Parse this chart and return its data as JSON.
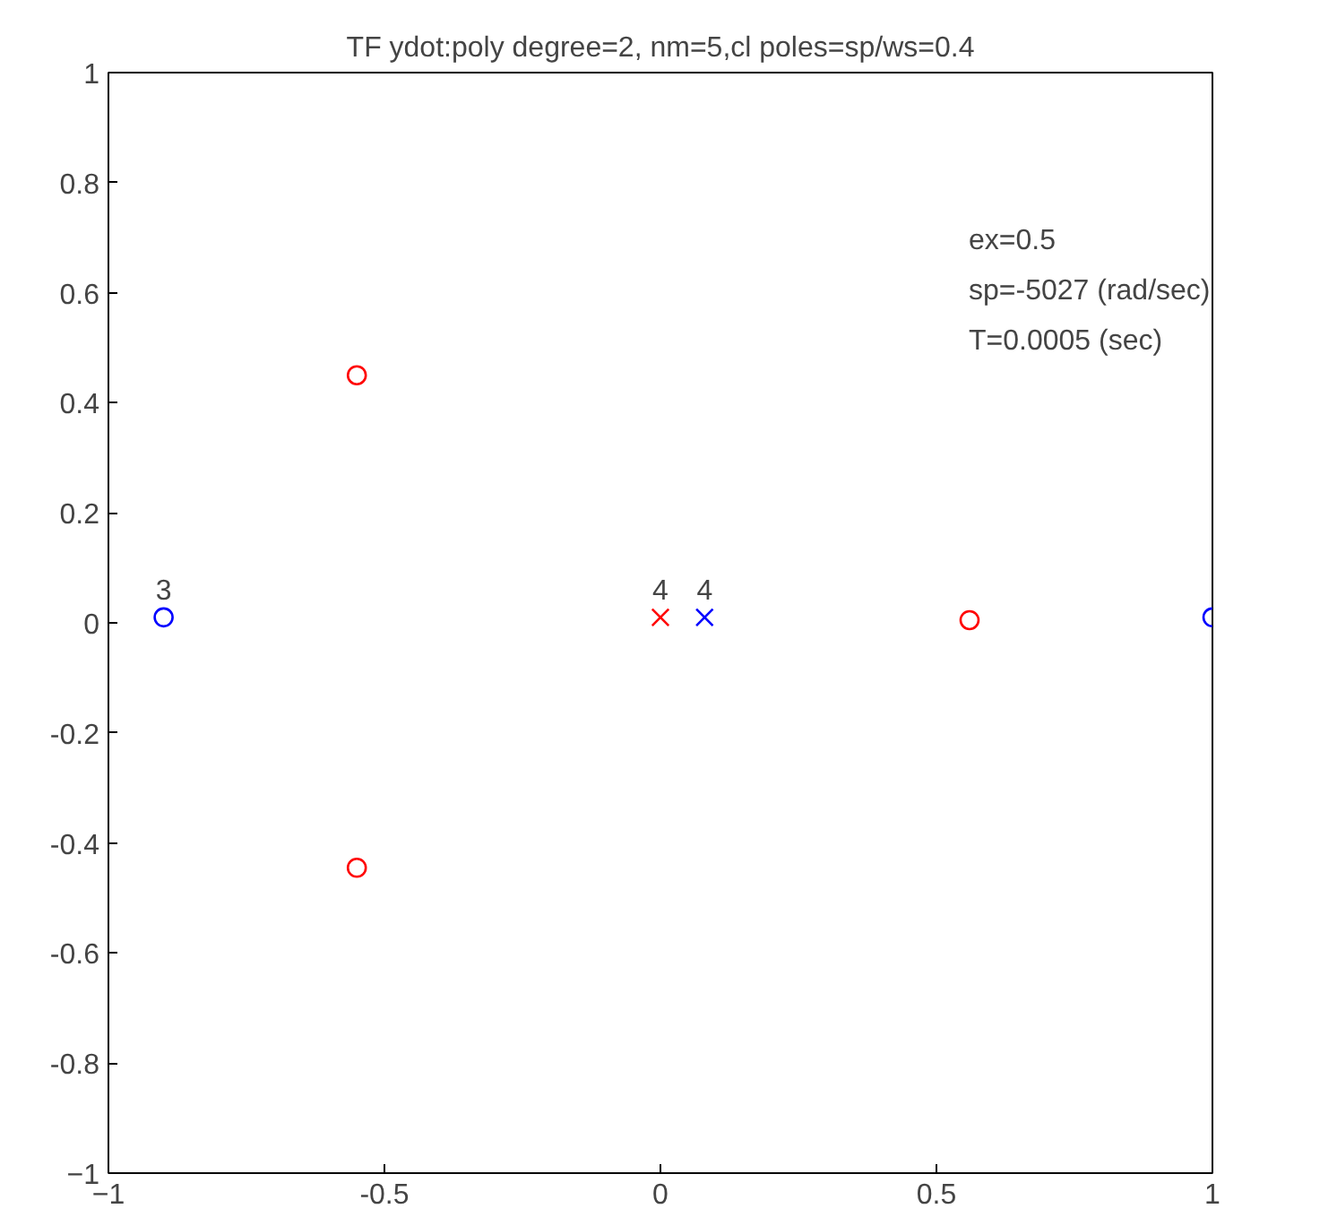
{
  "chart_data": {
    "type": "scatter",
    "title": "TF ydot:poly degree=2, nm=5,cl poles=sp/ws=0.4",
    "xlim": [
      -1,
      1
    ],
    "ylim": [
      -1,
      1
    ],
    "xticks": [
      -1,
      {
        "value": -0.5,
        "label": "-0.5"
      },
      0,
      {
        "value": 0.5,
        "label": "0.5"
      },
      1
    ],
    "yticks": [
      -1,
      {
        "value": -0.8,
        "label": "-0.8"
      },
      {
        "value": -0.6,
        "label": "-0.6"
      },
      {
        "value": -0.4,
        "label": "-0.4"
      },
      {
        "value": -0.2,
        "label": "-0.2"
      },
      0,
      {
        "value": 0.2,
        "label": "0.2"
      },
      {
        "value": 0.4,
        "label": "0.4"
      },
      {
        "value": 0.6,
        "label": "0.6"
      },
      {
        "value": 0.8,
        "label": "0.8"
      },
      1
    ],
    "grid": false,
    "series": [
      {
        "color": "#ff0000",
        "marker": "circle",
        "x": [
          -0.55,
          -0.55,
          0.56
        ],
        "values": [
          0.45,
          -0.445,
          0.005
        ]
      },
      {
        "color": "#0000ff",
        "marker": "circle",
        "x": [
          -0.9,
          1.0
        ],
        "values": [
          0.01,
          0.01
        ]
      },
      {
        "color": "#ff0000",
        "marker": "cross",
        "x": [
          0.0
        ],
        "values": [
          0.01
        ]
      },
      {
        "color": "#0000ff",
        "marker": "cross",
        "x": [
          0.08
        ],
        "values": [
          0.01
        ]
      }
    ],
    "annotations": [
      {
        "text": "3",
        "x": -0.9,
        "y": 0.01
      },
      {
        "text": "4",
        "x": 0.08,
        "y": 0.01
      },
      {
        "text": "4",
        "x": 0.0,
        "y": 0.01
      },
      "ex=0.5",
      "sp=-5027 (rad/sec)",
      "T=0.0005 (sec)"
    ]
  }
}
